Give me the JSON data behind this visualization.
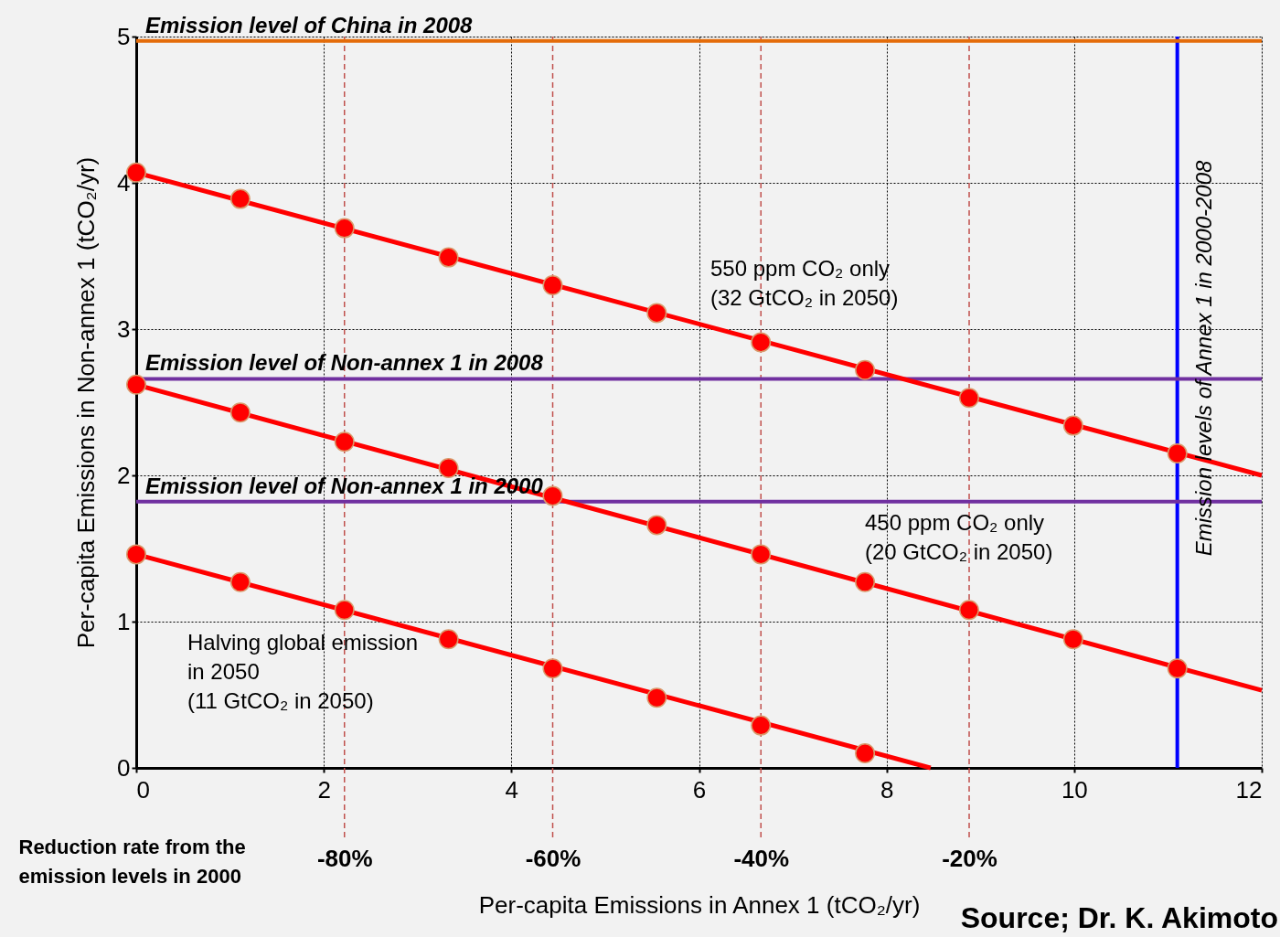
{
  "chart_data": {
    "type": "scatter",
    "xlabel": "Per-capita Emissions in Annex 1 (tCO₂/yr)",
    "ylabel": "Per-capita Emissions in Non-annex 1 (tCO₂/yr)",
    "x2label": "Reduction rate from the\nemission levels in 2000",
    "xlim": [
      0,
      12
    ],
    "xticks": [
      0,
      2,
      4,
      6,
      8,
      10,
      12
    ],
    "x2lim": [
      -100,
      8.1
    ],
    "x2ticks": [
      {
        "value": -80,
        "label": "-80%"
      },
      {
        "value": -60,
        "label": "-60%"
      },
      {
        "value": -40,
        "label": "-40%"
      },
      {
        "value": -20,
        "label": "-20%"
      }
    ],
    "ylim": [
      0,
      5
    ],
    "yticks": [
      0,
      1,
      2,
      3,
      4,
      5
    ],
    "grid": true,
    "marker": "circle",
    "series": [
      {
        "type": "line",
        "marker": "none",
        "color": "#ff0000",
        "x": [
          0,
          12
        ],
        "values": [
          4.07,
          2.0
        ]
      },
      {
        "type": "line",
        "marker": "none",
        "color": "#ff0000",
        "x": [
          0,
          12
        ],
        "values": [
          2.62,
          0.53
        ]
      },
      {
        "type": "line",
        "marker": "none",
        "color": "#ff0000",
        "x": [
          0,
          8.47
        ],
        "values": [
          1.46,
          0
        ]
      },
      {
        "color": "#ff0000",
        "x": [
          0,
          1.11,
          2.22,
          3.33,
          4.44,
          5.55,
          6.66,
          7.77,
          8.88,
          9.99,
          11.1
        ],
        "values": [
          4.07,
          3.89,
          3.69,
          3.49,
          3.3,
          3.11,
          2.91,
          2.72,
          2.53,
          2.34,
          2.15
        ]
      },
      {
        "color": "#ff0000",
        "x": [
          0,
          1.11,
          2.22,
          3.33,
          4.44,
          5.55,
          6.66,
          7.77,
          8.88,
          9.99,
          11.1
        ],
        "values": [
          2.62,
          2.43,
          2.23,
          2.05,
          1.86,
          1.66,
          1.46,
          1.27,
          1.08,
          0.88,
          0.68
        ]
      },
      {
        "color": "#ff0000",
        "x": [
          0,
          1.11,
          2.22,
          3.33,
          4.44,
          5.55,
          6.66,
          7.77
        ],
        "values": [
          1.46,
          1.27,
          1.08,
          0.88,
          0.68,
          0.48,
          0.29,
          0.1
        ]
      }
    ],
    "ref_lines": [
      {
        "axis": "y",
        "value": 4.97,
        "label": "Emission level of China in 2008",
        "color": "#e46c0a"
      },
      {
        "axis": "y",
        "value": 2.66,
        "label": "Emission level of Non-annex 1 in 2008",
        "color": "#7030a0"
      },
      {
        "axis": "y",
        "value": 1.82,
        "label": "Emission level of Non-annex 1 in 2000",
        "color": "#7030a0"
      },
      {
        "axis": "x",
        "value": 11.1,
        "label": "Emission levels of Annex 1 in 2000-2008",
        "color": "#0000ff"
      }
    ],
    "annotations": [
      "Source; Dr. K. Akimoto",
      "550 ppm CO₂ only\n(32 GtCO₂ in 2050)",
      "450 ppm CO₂ only\n(20 GtCO₂ in 2050)",
      " Halving global emission\nin 2050\n(11 GtCO₂ in 2050)"
    ]
  }
}
